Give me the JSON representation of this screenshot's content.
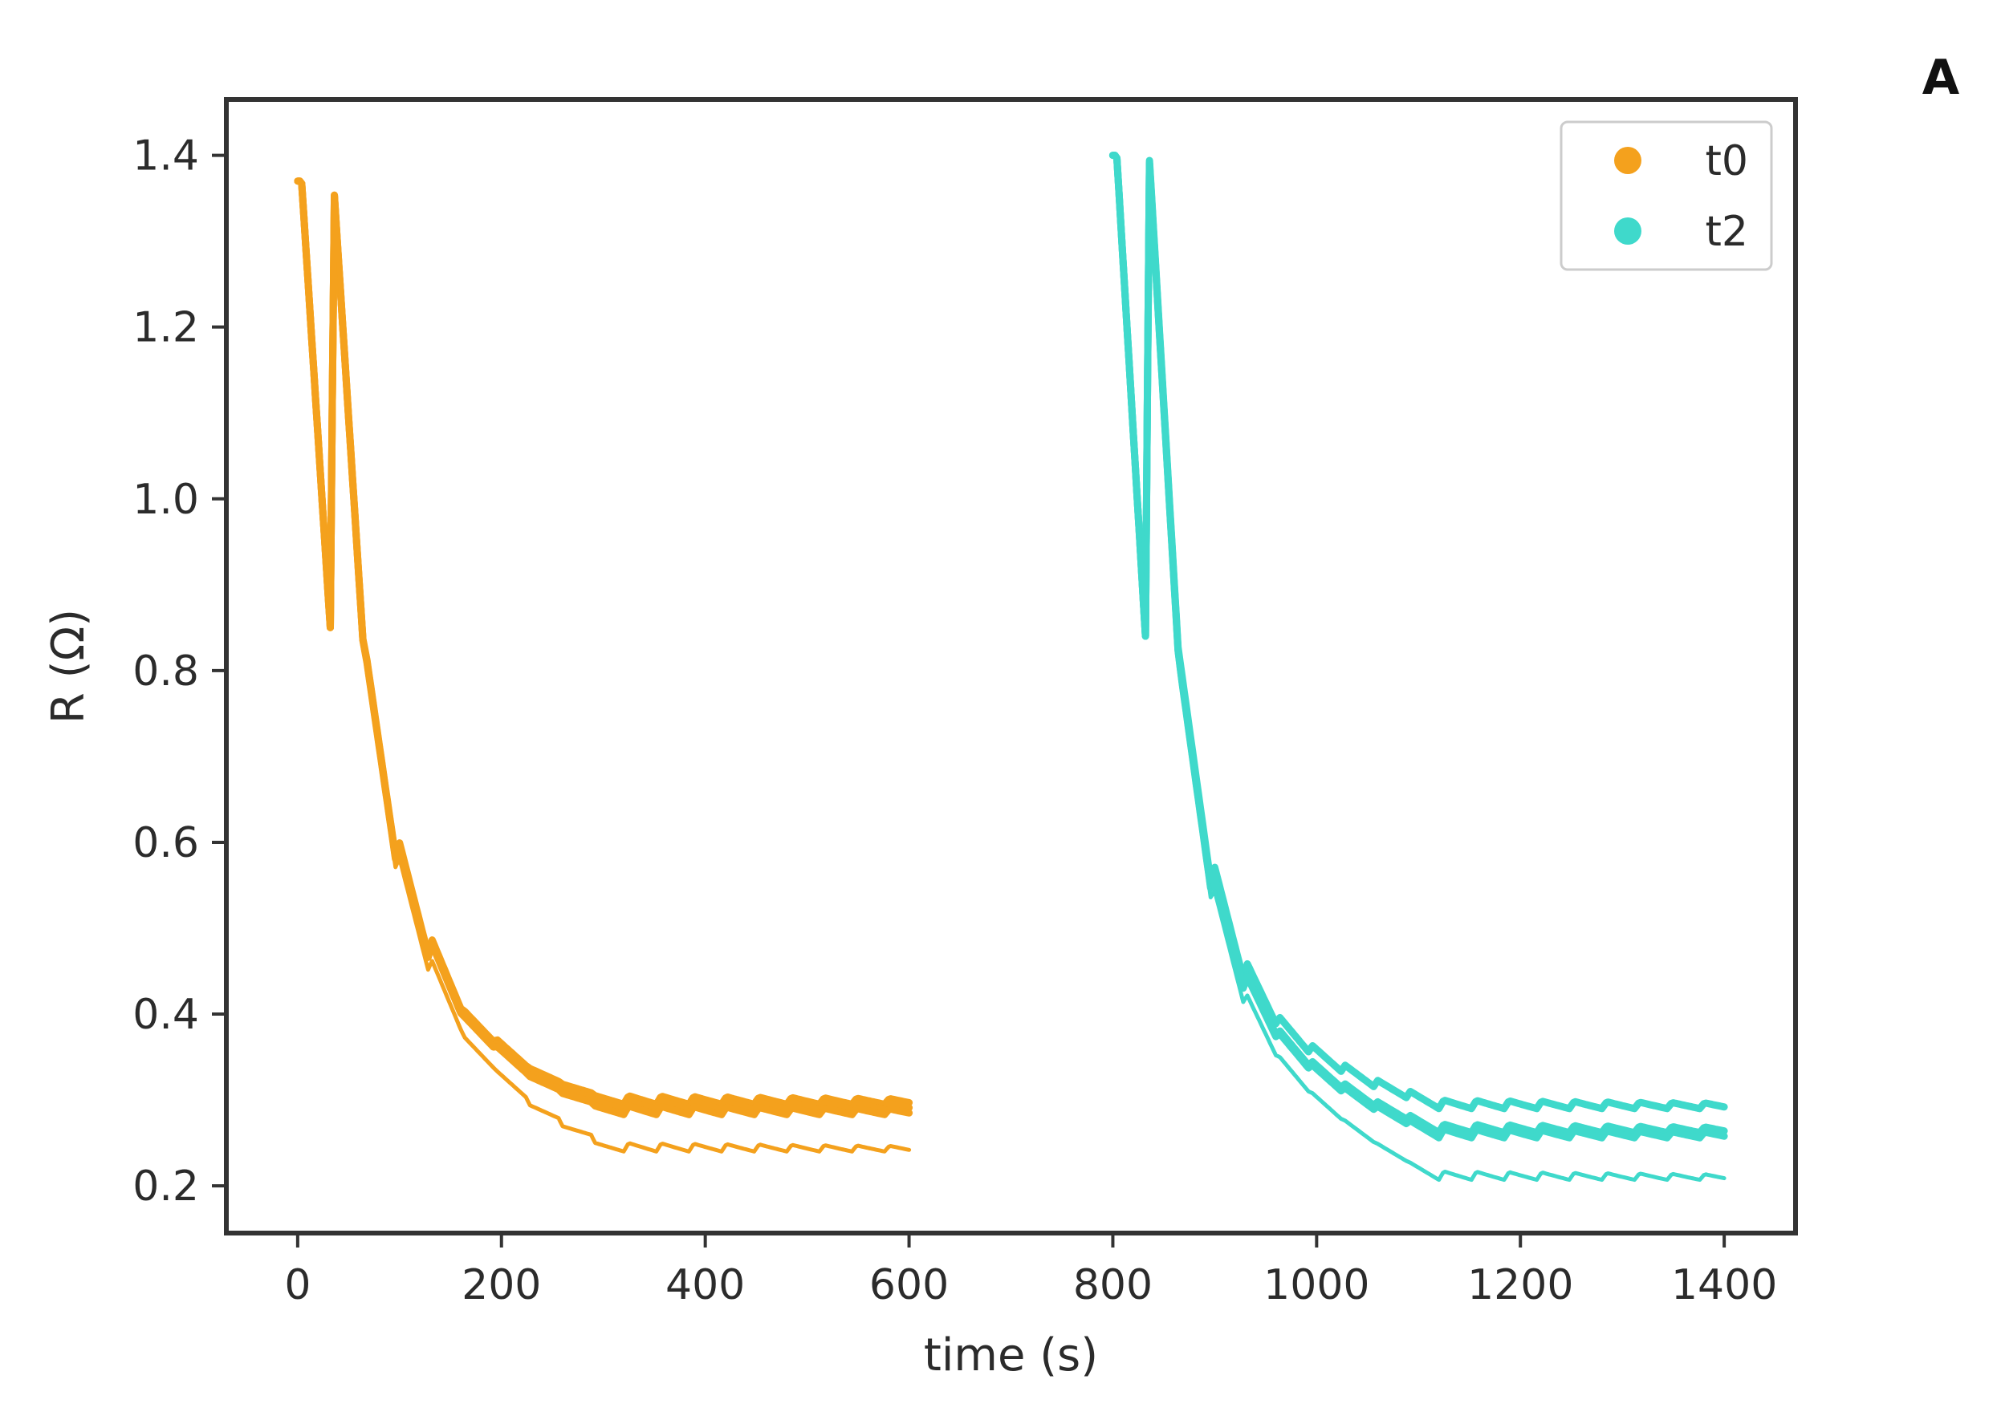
{
  "panel_label": "A",
  "chart_data": {
    "type": "line",
    "title": "",
    "xlabel": "time (s)",
    "ylabel": "R  (Ω)",
    "xlim": [
      -70,
      1470
    ],
    "ylim": [
      0.145,
      1.465
    ],
    "xticks": [
      0,
      200,
      400,
      600,
      800,
      1000,
      1200,
      1400
    ],
    "yticks": [
      0.2,
      0.4,
      0.6,
      0.8,
      1.0,
      1.2,
      1.4
    ],
    "ytick_labels": [
      "0.2",
      "0.4",
      "0.6",
      "0.8",
      "1.0",
      "1.2",
      "1.4"
    ],
    "grid": false,
    "legend": {
      "placement": "top-right",
      "entries": [
        {
          "name": "t0",
          "color": "#f4a11d"
        },
        {
          "name": "t2",
          "color": "#3fd9cb"
        }
      ]
    },
    "series": [
      {
        "name": "t0",
        "color": "#f4a11d",
        "start": 0,
        "end": 600,
        "period": 32,
        "peak": [
          1.37,
          1.36,
          0.82,
          0.61,
          0.5,
          0.42,
          0.39,
          0.36,
          0.345,
          0.335
        ],
        "low": [
          0.85,
          0.84,
          0.59,
          0.48,
          0.42,
          0.385,
          0.36,
          0.345,
          0.335,
          0.325
        ],
        "runs": [
          {
            "final": 0.295,
            "tail_amplitude": 0.006
          },
          {
            "final": 0.289,
            "tail_amplitude": 0.006
          },
          {
            "final": 0.283,
            "tail_amplitude": 0.006
          },
          {
            "final": 0.24,
            "tail_amplitude": 0.006
          }
        ]
      },
      {
        "name": "t2",
        "color": "#3fd9cb",
        "start": 800,
        "end": 1400,
        "period": 32,
        "peak": [
          1.4,
          1.4,
          0.8,
          0.58,
          0.47,
          0.41,
          0.38,
          0.36,
          0.345,
          0.335
        ],
        "low": [
          0.84,
          0.83,
          0.56,
          0.45,
          0.4,
          0.37,
          0.35,
          0.335,
          0.325,
          0.315
        ],
        "runs": [
          {
            "final": 0.29,
            "tail_amplitude": 0.006
          },
          {
            "final": 0.262,
            "tail_amplitude": 0.006
          },
          {
            "final": 0.256,
            "tail_amplitude": 0.006
          },
          {
            "final": 0.207,
            "tail_amplitude": 0.006
          }
        ]
      }
    ]
  }
}
